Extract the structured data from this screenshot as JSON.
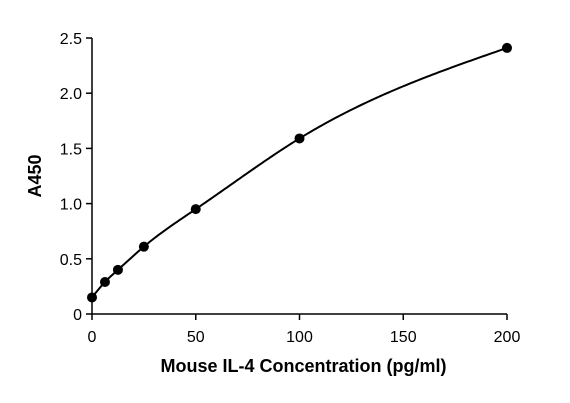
{
  "chart_data": {
    "type": "scatter",
    "title": "",
    "xlabel": "Mouse IL-4 Concentration (pg/ml)",
    "ylabel": "A450",
    "xlim": [
      0,
      200
    ],
    "ylim": [
      0,
      2.5
    ],
    "xticks": [
      "0",
      "50",
      "100",
      "150",
      "200"
    ],
    "yticks": [
      "0",
      "0.5",
      "1.0",
      "1.5",
      "2.0",
      "2.5"
    ],
    "grid": false,
    "legend": "none",
    "series": [
      {
        "points": [
          {
            "x": 0,
            "y": 0.15
          },
          {
            "x": 6.25,
            "y": 0.29
          },
          {
            "x": 12.5,
            "y": 0.4
          },
          {
            "x": 25,
            "y": 0.61
          },
          {
            "x": 50,
            "y": 0.95
          },
          {
            "x": 100,
            "y": 1.59
          },
          {
            "x": 200,
            "y": 2.41
          }
        ],
        "fit_curve": true
      }
    ],
    "colors": {
      "line": "#000000",
      "marker": "#000000"
    }
  }
}
